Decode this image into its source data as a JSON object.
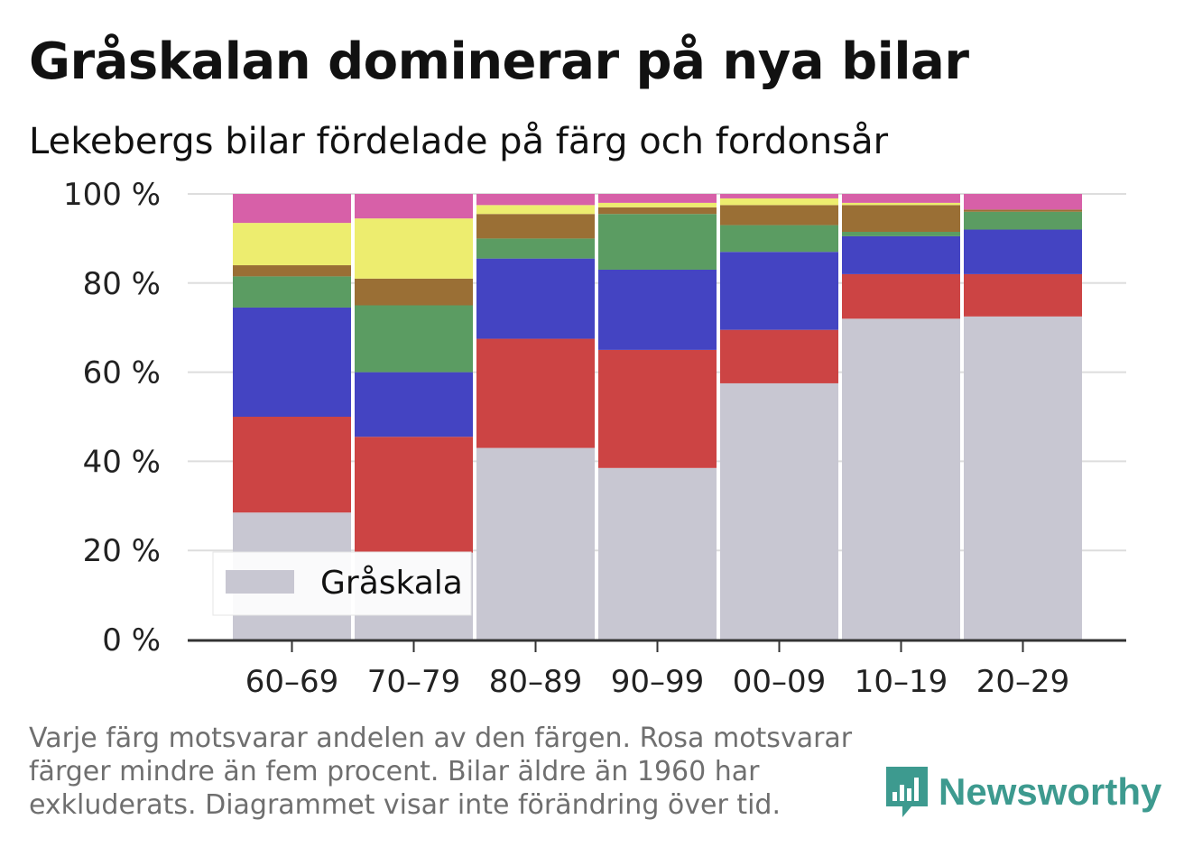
{
  "header": {
    "title": "Gråskalan dominerar på nya bilar",
    "subtitle": "Lekebergs bilar fördelade på färg och fordonsår"
  },
  "footnote": {
    "line1": "Varje färg motsvarar andelen av den färgen. Rosa motsvarar färger mindre än fem procent. Bilar äldre än 1960 har",
    "line2": "exkluderats. Diagrammet visar inte förändring över tid."
  },
  "logo": {
    "text": "Newsworthy",
    "icon": "newsworthy-chart-icon",
    "color": "#3d9a8f"
  },
  "chart_data": {
    "type": "bar",
    "stacked": true,
    "categories": [
      "60–69",
      "70–79",
      "80–89",
      "90–99",
      "00–09",
      "10–19",
      "20–29"
    ],
    "ylim": [
      0,
      100
    ],
    "yticks": [
      0,
      20,
      40,
      60,
      80,
      100
    ],
    "ytick_labels": [
      "0 %",
      "20 %",
      "40 %",
      "60 %",
      "80 %",
      "100 %"
    ],
    "grid": true,
    "legend": {
      "position": "bottom-left",
      "entries": [
        "Gråskala"
      ]
    },
    "series": [
      {
        "name": "Gråskala",
        "color": "#c8c7d2",
        "values": [
          28.5,
          19.5,
          43,
          38.5,
          57.5,
          72,
          72.5
        ]
      },
      {
        "color": "#cc4444",
        "values": [
          21.5,
          26,
          24.5,
          26.5,
          12,
          10,
          9.5
        ]
      },
      {
        "color": "#4444c2",
        "values": [
          24.5,
          14.5,
          18,
          18,
          17.5,
          8.5,
          10
        ]
      },
      {
        "color": "#5b9c62",
        "values": [
          7,
          15,
          4.5,
          12.5,
          6,
          1,
          4
        ]
      },
      {
        "color": "#9a6f35",
        "values": [
          2.5,
          6,
          5.5,
          1.5,
          4.5,
          6,
          0.5
        ]
      },
      {
        "color": "#eded6f",
        "values": [
          9.5,
          13.5,
          2,
          1,
          1.5,
          0.5,
          0
        ]
      },
      {
        "color": "#d760a8",
        "values": [
          6.5,
          5.5,
          2.5,
          2,
          1,
          2,
          3.5
        ]
      }
    ]
  }
}
